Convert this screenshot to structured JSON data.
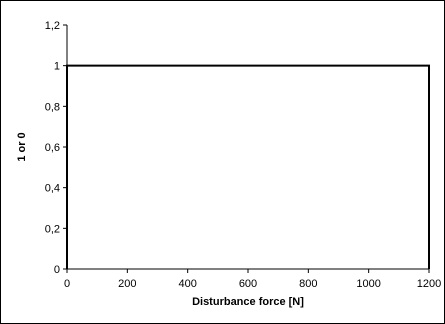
{
  "chart_data": {
    "type": "line",
    "title": "",
    "xlabel": "Disturbance force [N]",
    "ylabel": "1 or 0",
    "xlim": [
      0,
      1200
    ],
    "ylim": [
      0,
      1.2
    ],
    "x_ticks": [
      0,
      200,
      400,
      600,
      800,
      1000,
      1200
    ],
    "y_ticks": [
      0,
      0.2,
      0.4,
      0.6,
      0.8,
      1,
      1.2
    ],
    "x_tick_labels": [
      "0",
      "200",
      "400",
      "600",
      "800",
      "1000",
      "1200"
    ],
    "y_tick_labels": [
      "0",
      "0,2",
      "0,4",
      "0,6",
      "0,8",
      "1",
      "1,2"
    ],
    "grid": false,
    "legend": "none",
    "series": [
      {
        "color": "#000000",
        "points": [
          {
            "x": 0,
            "y": 0
          },
          {
            "x": 0,
            "y": 1
          },
          {
            "x": 1200,
            "y": 1
          },
          {
            "x": 1200,
            "y": 0
          }
        ]
      }
    ]
  }
}
